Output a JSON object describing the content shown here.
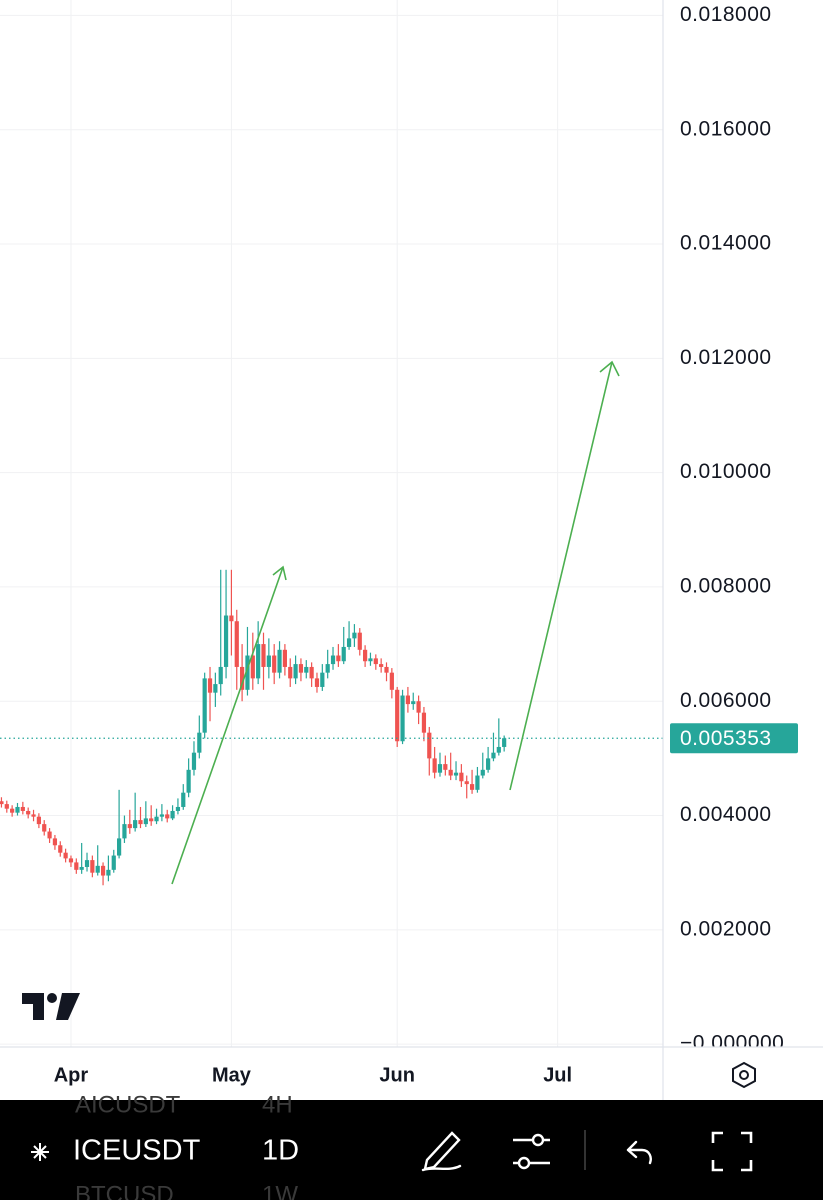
{
  "chart_data": {
    "type": "candlestick",
    "categories": [
      null,
      null,
      null,
      null,
      null,
      null,
      null,
      null,
      null,
      null,
      null,
      null,
      null,
      null,
      null,
      null,
      null,
      null,
      null,
      null,
      null,
      null,
      null,
      null,
      null,
      null,
      null,
      null,
      null,
      null,
      null,
      null,
      null,
      null,
      null,
      null,
      null,
      null,
      null,
      null,
      null,
      null,
      null,
      null,
      null,
      null,
      null,
      null,
      null,
      null,
      null,
      null,
      null,
      null,
      null,
      null,
      null,
      null,
      null,
      null,
      null,
      null,
      null,
      null,
      null,
      null,
      null,
      null,
      null,
      null,
      null,
      null,
      null,
      null,
      null,
      null,
      null,
      null,
      null,
      null,
      null,
      null,
      null,
      null,
      null,
      null,
      null,
      null,
      null,
      null,
      null,
      null,
      null,
      null,
      null
    ],
    "open": [
      0.00425,
      0.0042,
      0.00412,
      0.00405,
      0.00415,
      0.00408,
      0.00402,
      0.00398,
      0.00385,
      0.00372,
      0.0036,
      0.00348,
      0.00335,
      0.00325,
      0.00318,
      0.00305,
      0.0031,
      0.00322,
      0.003,
      0.00312,
      0.00295,
      0.00305,
      0.0033,
      0.0036,
      0.00385,
      0.00378,
      0.00392,
      0.00385,
      0.00395,
      0.0039,
      0.00398,
      0.00402,
      0.00395,
      0.00408,
      0.00415,
      0.0044,
      0.0048,
      0.0051,
      0.00545,
      0.0064,
      0.00615,
      0.0063,
      0.0066,
      0.0075,
      0.0074,
      0.0066,
      0.0062,
      0.0068,
      0.0064,
      0.007,
      0.0066,
      0.0068,
      0.0065,
      0.0069,
      0.0066,
      0.0064,
      0.00665,
      0.0065,
      0.0066,
      0.0064,
      0.00625,
      0.0065,
      0.00665,
      0.0068,
      0.0067,
      0.00695,
      0.0071,
      0.0072,
      0.0069,
      0.0067,
      0.00675,
      0.00665,
      0.0066,
      0.0065,
      0.0062,
      0.0053,
      0.0061,
      0.00595,
      0.006,
      0.0058,
      0.00545,
      0.005,
      0.00475,
      0.0049,
      0.0048,
      0.0047,
      0.00475,
      0.0046,
      0.00455,
      0.00445,
      0.0047,
      0.0048,
      0.005,
      0.0051,
      0.0052
    ],
    "high": [
      0.00432,
      0.00426,
      0.00418,
      0.00422,
      0.00424,
      0.00414,
      0.0041,
      0.00404,
      0.00392,
      0.00378,
      0.00366,
      0.00355,
      0.00342,
      0.0033,
      0.00325,
      0.00352,
      0.00335,
      0.0033,
      0.00348,
      0.00318,
      0.0033,
      0.0034,
      0.00445,
      0.004,
      0.0041,
      0.0044,
      0.00415,
      0.00425,
      0.00418,
      0.00412,
      0.0042,
      0.0041,
      0.00418,
      0.0043,
      0.00455,
      0.005,
      0.0053,
      0.00575,
      0.0065,
      0.0066,
      0.0065,
      0.0083,
      0.0083,
      0.0083,
      0.0076,
      0.007,
      0.0073,
      0.0072,
      0.0074,
      0.0072,
      0.0071,
      0.007,
      0.00705,
      0.007,
      0.00675,
      0.0068,
      0.00675,
      0.00672,
      0.00668,
      0.0065,
      0.00665,
      0.0069,
      0.00695,
      0.007,
      0.0073,
      0.0074,
      0.00735,
      0.00728,
      0.00698,
      0.00685,
      0.00682,
      0.00675,
      0.00668,
      0.00658,
      0.00625,
      0.0062,
      0.00625,
      0.00615,
      0.0061,
      0.0059,
      0.00555,
      0.0052,
      0.0051,
      0.00505,
      0.0051,
      0.00495,
      0.0049,
      0.0047,
      0.0048,
      0.00485,
      0.0051,
      0.0052,
      0.00545,
      0.0057,
      0.0054
    ],
    "low": [
      0.00414,
      0.00405,
      0.00398,
      0.004,
      0.00402,
      0.00395,
      0.0039,
      0.00378,
      0.00365,
      0.00352,
      0.0034,
      0.00328,
      0.00318,
      0.0031,
      0.00298,
      0.00298,
      0.00302,
      0.00292,
      0.00295,
      0.00278,
      0.00285,
      0.003,
      0.00325,
      0.00352,
      0.00368,
      0.00372,
      0.00378,
      0.0038,
      0.00382,
      0.00385,
      0.0039,
      0.00388,
      0.00392,
      0.00402,
      0.0041,
      0.00432,
      0.0047,
      0.005,
      0.00535,
      0.00565,
      0.0059,
      0.0061,
      0.0064,
      0.0068,
      0.0062,
      0.006,
      0.0061,
      0.0062,
      0.0063,
      0.0062,
      0.0064,
      0.0063,
      0.0064,
      0.00645,
      0.00625,
      0.0063,
      0.00635,
      0.0064,
      0.00625,
      0.00615,
      0.00618,
      0.0064,
      0.00655,
      0.0066,
      0.00665,
      0.0069,
      0.00695,
      0.0068,
      0.0066,
      0.00662,
      0.00655,
      0.0065,
      0.00635,
      0.00605,
      0.0052,
      0.00525,
      0.0058,
      0.00585,
      0.0056,
      0.0053,
      0.0047,
      0.00465,
      0.00468,
      0.0047,
      0.00462,
      0.00462,
      0.0045,
      0.0043,
      0.00438,
      0.0044,
      0.00465,
      0.00475,
      0.00495,
      0.00505,
      0.00512
    ],
    "close": [
      0.0042,
      0.00412,
      0.00405,
      0.00415,
      0.00408,
      0.00402,
      0.00398,
      0.00385,
      0.00372,
      0.0036,
      0.00348,
      0.00335,
      0.00325,
      0.00318,
      0.00305,
      0.0031,
      0.00322,
      0.003,
      0.00312,
      0.00295,
      0.00305,
      0.0033,
      0.0036,
      0.00385,
      0.00378,
      0.00392,
      0.00385,
      0.00395,
      0.0039,
      0.00398,
      0.00402,
      0.00395,
      0.00408,
      0.00415,
      0.0044,
      0.0048,
      0.0051,
      0.00545,
      0.0064,
      0.00615,
      0.0063,
      0.0066,
      0.0075,
      0.0074,
      0.0066,
      0.0062,
      0.0068,
      0.0064,
      0.007,
      0.0066,
      0.0068,
      0.0065,
      0.0069,
      0.0066,
      0.0064,
      0.00665,
      0.0065,
      0.0066,
      0.0064,
      0.00625,
      0.0065,
      0.00665,
      0.0068,
      0.0067,
      0.00695,
      0.0071,
      0.0072,
      0.0069,
      0.0067,
      0.00675,
      0.00665,
      0.0066,
      0.0065,
      0.0062,
      0.0053,
      0.0061,
      0.00595,
      0.006,
      0.0058,
      0.00545,
      0.005,
      0.00475,
      0.0049,
      0.0048,
      0.0047,
      0.00475,
      0.0046,
      0.00455,
      0.00445,
      0.0047,
      0.0048,
      0.005,
      0.0051,
      0.0052,
      0.005353
    ],
    "up_color": "#26a69a",
    "down_color": "#ef5350",
    "last_price": 0.005353,
    "last_price_color": "#26a69a",
    "xlim": [
      -0.27,
      123.7
    ],
    "xticks": [
      {
        "value": 13,
        "label": "Apr"
      },
      {
        "value": 43,
        "label": "May"
      },
      {
        "value": 74,
        "label": "Jun"
      },
      {
        "value": 104,
        "label": "Jul"
      }
    ],
    "ylim": [
      -5e-05,
      0.01827
    ],
    "yticks": [
      {
        "value": 0,
        "label": "−0.000000"
      },
      {
        "value": 0.002,
        "label": "0.002000"
      },
      {
        "value": 0.004,
        "label": "0.004000"
      },
      {
        "value": 0.006,
        "label": "0.006000"
      },
      {
        "value": 0.008,
        "label": "0.008000"
      },
      {
        "value": 0.01,
        "label": "0.010000"
      },
      {
        "value": 0.012,
        "label": "0.012000"
      },
      {
        "value": 0.014,
        "label": "0.014000"
      },
      {
        "value": 0.016,
        "label": "0.016000"
      },
      {
        "value": 0.018,
        "label": "0.018000"
      }
    ],
    "grid": true
  },
  "toolbar": {
    "symbol": "ICEUSDT",
    "interval": "1D",
    "prev_symbol": "AICUSDT",
    "prev_interval": "4H",
    "next_symbol": "BTCUSD",
    "next_interval": "1W"
  }
}
